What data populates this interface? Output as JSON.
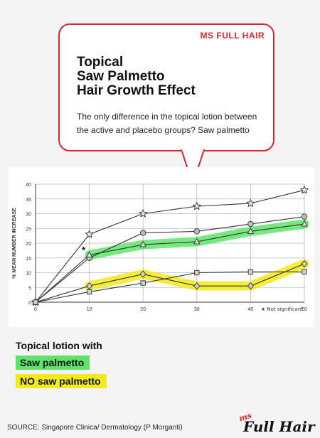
{
  "brand_tag": "MS FULL HAIR",
  "title_lines": [
    "Topical",
    "Saw Palmetto",
    "Hair Growth Effect"
  ],
  "subtitle": "The only difference in the topical lotion between the active and placebo groups? Saw palmetto",
  "legend": {
    "title": "Topical lotion with",
    "items": [
      {
        "label": "Saw palmetto",
        "color": "#5ee46a"
      },
      {
        "label": "NO saw palmetto",
        "color": "#f2ea1c"
      }
    ]
  },
  "source": "SOURCE:  Singapore Clinica/ Dermatology (P Morganti)",
  "logo": {
    "small": "ms",
    "main": "Full Hair"
  },
  "colors": {
    "accent": "#d9262c",
    "green_highlight": "#5ee46a",
    "yellow_highlight": "#f2ea1c"
  },
  "chart_data": {
    "type": "line",
    "ylabel": "% MEAN NUMBER INCREASE",
    "xlabel": "",
    "xlim": [
      0,
      50
    ],
    "ylim": [
      0,
      40
    ],
    "xticks": [
      0,
      10,
      20,
      30,
      40,
      50
    ],
    "yticks": [
      0,
      5,
      10,
      15,
      20,
      25,
      30,
      35,
      40
    ],
    "grid": true,
    "annotation": "★ Not significant",
    "significance_mark": {
      "text": "*",
      "x": 10,
      "y": 17
    },
    "x": [
      0,
      10,
      20,
      30,
      40,
      50
    ],
    "series": [
      {
        "marker": "star",
        "values": [
          0,
          23,
          30,
          32.5,
          33.5,
          38
        ]
      },
      {
        "marker": "circle",
        "values": [
          0,
          15,
          23.5,
          24,
          26.5,
          29
        ]
      },
      {
        "marker": "triangle",
        "values": [
          0,
          16,
          19.5,
          20.5,
          24,
          26.5
        ],
        "highlight": "green"
      },
      {
        "marker": "diamond",
        "values": [
          0,
          5.5,
          9.5,
          5.5,
          5.5,
          13
        ],
        "highlight": "yellow"
      },
      {
        "marker": "square",
        "values": [
          0,
          3.5,
          6.5,
          10,
          10.3,
          10.3
        ]
      }
    ]
  }
}
